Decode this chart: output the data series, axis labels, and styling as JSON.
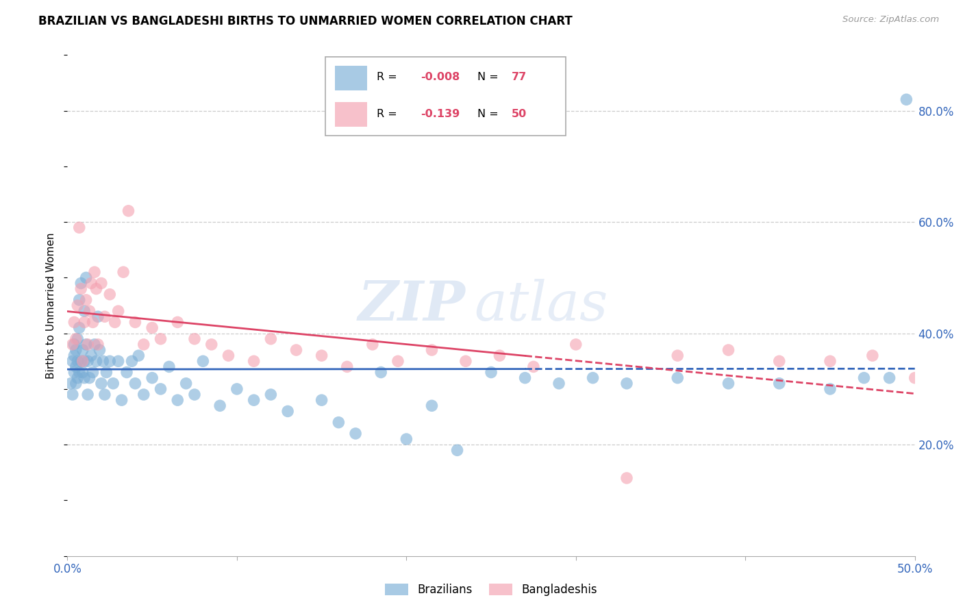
{
  "title": "BRAZILIAN VS BANGLADESHI BIRTHS TO UNMARRIED WOMEN CORRELATION CHART",
  "source": "Source: ZipAtlas.com",
  "ylabel": "Births to Unmarried Women",
  "xlim": [
    0.0,
    0.5
  ],
  "ylim": [
    0.0,
    0.9
  ],
  "brazil_R": "-0.008",
  "brazil_N": "77",
  "bangla_R": "-0.139",
  "bangla_N": "50",
  "brazil_color": "#7aaed6",
  "bangla_color": "#f4a0b0",
  "brazil_line_color": "#3366bb",
  "bangla_line_color": "#dd4466",
  "watermark_zip": "ZIP",
  "watermark_atlas": "atlas",
  "legend_label1": "Brazilians",
  "legend_label2": "Bangladeshis",
  "brazil_x": [
    0.002,
    0.003,
    0.003,
    0.004,
    0.004,
    0.004,
    0.005,
    0.005,
    0.005,
    0.006,
    0.006,
    0.006,
    0.007,
    0.007,
    0.007,
    0.008,
    0.008,
    0.009,
    0.009,
    0.01,
    0.01,
    0.01,
    0.011,
    0.011,
    0.012,
    0.012,
    0.013,
    0.014,
    0.015,
    0.016,
    0.017,
    0.018,
    0.019,
    0.02,
    0.021,
    0.022,
    0.023,
    0.025,
    0.027,
    0.03,
    0.032,
    0.035,
    0.038,
    0.04,
    0.042,
    0.045,
    0.05,
    0.055,
    0.06,
    0.065,
    0.07,
    0.075,
    0.08,
    0.09,
    0.1,
    0.11,
    0.12,
    0.13,
    0.15,
    0.16,
    0.17,
    0.185,
    0.2,
    0.215,
    0.23,
    0.25,
    0.27,
    0.29,
    0.31,
    0.33,
    0.36,
    0.39,
    0.42,
    0.45,
    0.47,
    0.485,
    0.495
  ],
  "brazil_y": [
    0.31,
    0.29,
    0.35,
    0.33,
    0.36,
    0.38,
    0.31,
    0.34,
    0.37,
    0.32,
    0.35,
    0.39,
    0.33,
    0.41,
    0.46,
    0.35,
    0.49,
    0.33,
    0.37,
    0.32,
    0.35,
    0.44,
    0.38,
    0.5,
    0.35,
    0.29,
    0.32,
    0.36,
    0.33,
    0.38,
    0.35,
    0.43,
    0.37,
    0.31,
    0.35,
    0.29,
    0.33,
    0.35,
    0.31,
    0.35,
    0.28,
    0.33,
    0.35,
    0.31,
    0.36,
    0.29,
    0.32,
    0.3,
    0.34,
    0.28,
    0.31,
    0.29,
    0.35,
    0.27,
    0.3,
    0.28,
    0.29,
    0.26,
    0.28,
    0.24,
    0.22,
    0.33,
    0.21,
    0.27,
    0.19,
    0.33,
    0.32,
    0.31,
    0.32,
    0.31,
    0.32,
    0.31,
    0.31,
    0.3,
    0.32,
    0.32,
    0.82
  ],
  "bangla_x": [
    0.003,
    0.004,
    0.005,
    0.006,
    0.007,
    0.008,
    0.009,
    0.01,
    0.011,
    0.012,
    0.013,
    0.014,
    0.015,
    0.016,
    0.017,
    0.018,
    0.02,
    0.022,
    0.025,
    0.028,
    0.03,
    0.033,
    0.036,
    0.04,
    0.045,
    0.05,
    0.055,
    0.065,
    0.075,
    0.085,
    0.095,
    0.11,
    0.12,
    0.135,
    0.15,
    0.165,
    0.18,
    0.195,
    0.215,
    0.235,
    0.255,
    0.275,
    0.3,
    0.33,
    0.36,
    0.39,
    0.42,
    0.45,
    0.475,
    0.5
  ],
  "bangla_y": [
    0.38,
    0.42,
    0.39,
    0.45,
    0.59,
    0.48,
    0.35,
    0.42,
    0.46,
    0.38,
    0.44,
    0.49,
    0.42,
    0.51,
    0.48,
    0.38,
    0.49,
    0.43,
    0.47,
    0.42,
    0.44,
    0.51,
    0.62,
    0.42,
    0.38,
    0.41,
    0.39,
    0.42,
    0.39,
    0.38,
    0.36,
    0.35,
    0.39,
    0.37,
    0.36,
    0.34,
    0.38,
    0.35,
    0.37,
    0.35,
    0.36,
    0.34,
    0.38,
    0.14,
    0.36,
    0.37,
    0.35,
    0.35,
    0.36,
    0.32
  ]
}
